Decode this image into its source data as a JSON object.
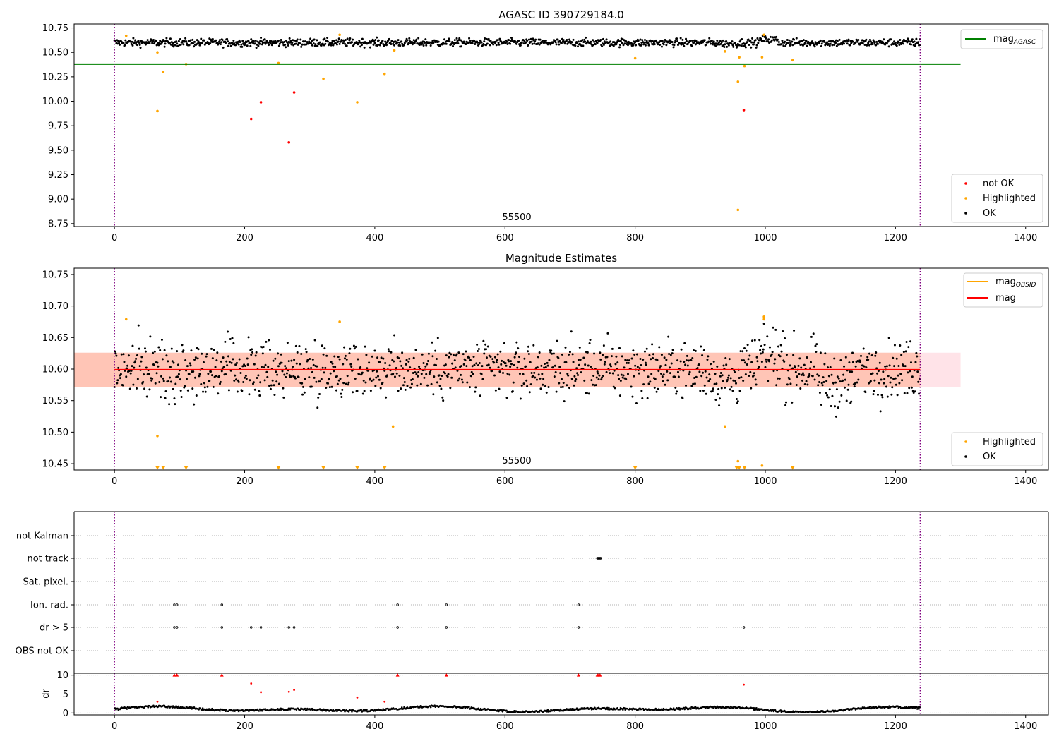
{
  "colors": {
    "ok": "#000000",
    "not_ok": "#ff0000",
    "highlighted": "#ffa500",
    "mag_agasc": "#008000",
    "mag_obsid": "#ffa500",
    "mag": "#ff0000",
    "band_outer": "#ffc0cb",
    "band_inner": "#ffa07a",
    "obs_boundary": "#800080",
    "grid": "#b0b0b0"
  },
  "chart_data": [
    {
      "type": "scatter",
      "title": "AGASC ID 390729184.0",
      "annotation": "55500",
      "xlim": [
        -62,
        1435
      ],
      "ylim": [
        8.72,
        10.79
      ],
      "xticks": [
        "0",
        "200",
        "400",
        "600",
        "800",
        "1000",
        "1200",
        "1400"
      ],
      "yticks": [
        "8.75",
        "9.00",
        "9.25",
        "9.50",
        "9.75",
        "10.00",
        "10.25",
        "10.50",
        "10.75"
      ],
      "vertical_lines_x": [
        0,
        1238
      ],
      "reference_lines": [
        {
          "name": "mag_AGASC",
          "y": 10.38,
          "x_range": [
            -62,
            1300
          ]
        }
      ],
      "legends": [
        {
          "placement": "upper right",
          "entries": [
            {
              "label": "mag",
              "subscript": "AGASC",
              "style": "line",
              "color_key": "mag_agasc"
            }
          ]
        },
        {
          "placement": "lower right",
          "entries": [
            {
              "label": "not OK",
              "style": "dot",
              "color_key": "not_ok"
            },
            {
              "label": "Highlighted",
              "style": "dot",
              "color_key": "highlighted"
            },
            {
              "label": "OK",
              "style": "dot",
              "color_key": "ok"
            }
          ]
        }
      ],
      "series": [
        {
          "name": "OK",
          "generated_ok_band": {
            "center": 10.6,
            "spread": 0.03
          }
        },
        {
          "name": "not OK",
          "points": [
            [
              210,
              9.82
            ],
            [
              225,
              9.99
            ],
            [
              268,
              9.58
            ],
            [
              276,
              10.09
            ],
            [
              967,
              9.91
            ]
          ]
        },
        {
          "name": "Highlighted",
          "points": [
            [
              18,
              10.67
            ],
            [
              66,
              9.9
            ],
            [
              66,
              10.5
            ],
            [
              75,
              10.3
            ],
            [
              110,
              10.38
            ],
            [
              252,
              10.39
            ],
            [
              321,
              10.23
            ],
            [
              346,
              10.68
            ],
            [
              373,
              9.99
            ],
            [
              415,
              10.28
            ],
            [
              430,
              10.52
            ],
            [
              800,
              10.44
            ],
            [
              938,
              10.51
            ],
            [
              958,
              10.2
            ],
            [
              958,
              8.89
            ],
            [
              960,
              10.45
            ],
            [
              968,
              10.36
            ],
            [
              995,
              10.45
            ],
            [
              998,
              10.68
            ],
            [
              1042,
              10.42
            ]
          ]
        }
      ]
    },
    {
      "type": "scatter",
      "title": "Magnitude Estimates",
      "annotation": "55500",
      "xlim": [
        -62,
        1435
      ],
      "ylim": [
        10.44,
        10.76
      ],
      "xticks": [
        "0",
        "200",
        "400",
        "600",
        "800",
        "1000",
        "1200",
        "1400"
      ],
      "yticks": [
        "10.45",
        "10.50",
        "10.55",
        "10.60",
        "10.65",
        "10.70",
        "10.75"
      ],
      "vertical_lines_x": [
        0,
        1238
      ],
      "reference_lines": [
        {
          "name": "mag",
          "y": 10.599,
          "x_range": [
            0,
            1238
          ]
        }
      ],
      "bands": [
        {
          "y_range": [
            10.572,
            10.626
          ],
          "x_range": [
            -62,
            1300
          ],
          "color_key": "band_outer"
        },
        {
          "y_range": [
            10.572,
            10.626
          ],
          "x_range": [
            -62,
            1238
          ],
          "color_key": "band_inner"
        }
      ],
      "legends": [
        {
          "placement": "upper right",
          "entries": [
            {
              "label": "mag",
              "subscript": "OBSID",
              "style": "line",
              "color_key": "mag_obsid"
            },
            {
              "label": "mag",
              "style": "line",
              "color_key": "mag"
            }
          ]
        },
        {
          "placement": "lower right",
          "entries": [
            {
              "label": "Highlighted",
              "style": "dot",
              "color_key": "highlighted"
            },
            {
              "label": "OK",
              "style": "dot",
              "color_key": "ok"
            }
          ]
        }
      ],
      "series": [
        {
          "name": "OK",
          "generated_ok_band": {
            "center": 10.6,
            "spread": 0.03
          }
        },
        {
          "name": "Highlighted",
          "points": [
            [
              18,
              10.679
            ],
            [
              66,
              10.494
            ],
            [
              346,
              10.675
            ],
            [
              428,
              10.509
            ],
            [
              938,
              10.509
            ],
            [
              958,
              10.454
            ],
            [
              995,
              10.447
            ],
            [
              998,
              10.683
            ],
            [
              998,
              10.679
            ]
          ]
        },
        {
          "name": "Highlighted (below axis)",
          "marker": "triangle-down",
          "x": [
            66,
            75,
            110,
            252,
            321,
            373,
            415,
            800,
            956,
            960,
            968,
            1042
          ]
        }
      ]
    },
    {
      "type": "scatter",
      "title": "",
      "xlim": [
        -62,
        1435
      ],
      "categories": [
        "not Kalman",
        "not track",
        "Sat. pixel.",
        "Ion. rad.",
        "dr > 5",
        "OBS not OK"
      ],
      "flag_points": {
        "not track": [
          742,
          743,
          744,
          745,
          746,
          747
        ],
        "Ion. rad.": [
          92,
          96,
          165,
          435,
          510,
          713
        ],
        "dr > 5": [
          92,
          96,
          165,
          210,
          225,
          268,
          276,
          435,
          510,
          713,
          967
        ],
        "OBS not OK": []
      },
      "vertical_lines_x": [
        0,
        1238
      ]
    },
    {
      "type": "scatter",
      "ylabel": "dr",
      "xlim": [
        -62,
        1435
      ],
      "ylim": [
        -0.5,
        10.5
      ],
      "xticks": [
        "0",
        "200",
        "400",
        "600",
        "800",
        "1000",
        "1200",
        "1400"
      ],
      "yticks": [
        "0",
        "5",
        "10"
      ],
      "vertical_lines_x": [
        0,
        1238
      ],
      "series": [
        {
          "name": "OK",
          "generated_dr": {
            "min": 0.1,
            "max": 2.0
          }
        },
        {
          "name": "not OK",
          "points": [
            [
              66,
              3.0
            ],
            [
              210,
              7.8
            ],
            [
              225,
              5.5
            ],
            [
              268,
              5.6
            ],
            [
              276,
              6.1
            ],
            [
              373,
              4.1
            ],
            [
              415,
              3.0
            ],
            [
              967,
              7.5
            ]
          ]
        },
        {
          "name": "not OK (clipped)",
          "marker": "triangle-up",
          "x": [
            92,
            96,
            165,
            435,
            510,
            713,
            742,
            744,
            746
          ]
        }
      ]
    }
  ]
}
